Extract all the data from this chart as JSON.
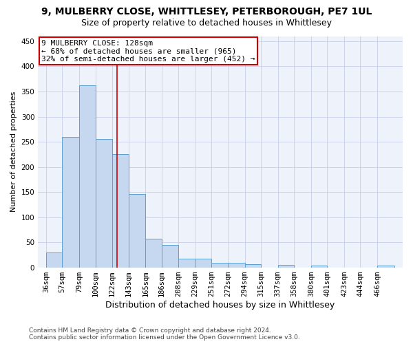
{
  "title": "9, MULBERRY CLOSE, WHITTLESEY, PETERBOROUGH, PE7 1UL",
  "subtitle": "Size of property relative to detached houses in Whittlesey",
  "xlabel": "Distribution of detached houses by size in Whittlesey",
  "ylabel": "Number of detached properties",
  "bar_color": "#c5d8f0",
  "bar_edge_color": "#5a9fd4",
  "categories": [
    "36sqm",
    "57sqm",
    "79sqm",
    "100sqm",
    "122sqm",
    "143sqm",
    "165sqm",
    "186sqm",
    "208sqm",
    "229sqm",
    "251sqm",
    "272sqm",
    "294sqm",
    "315sqm",
    "337sqm",
    "358sqm",
    "380sqm",
    "401sqm",
    "423sqm",
    "444sqm",
    "466sqm"
  ],
  "values": [
    30,
    260,
    362,
    255,
    225,
    147,
    57,
    45,
    18,
    18,
    10,
    10,
    7,
    0,
    6,
    0,
    4,
    0,
    0,
    0,
    4
  ],
  "ylim": [
    0,
    460
  ],
  "yticks": [
    0,
    50,
    100,
    150,
    200,
    250,
    300,
    350,
    400,
    450
  ],
  "bin_width": 21,
  "bin_starts": [
    36,
    57,
    79,
    100,
    122,
    143,
    165,
    186,
    208,
    229,
    251,
    272,
    294,
    315,
    337,
    358,
    380,
    401,
    423,
    444,
    466
  ],
  "property_line_x": 128,
  "annotation_line1": "9 MULBERRY CLOSE: 128sqm",
  "annotation_line2": "← 68% of detached houses are smaller (965)",
  "annotation_line3": "32% of semi-detached houses are larger (452) →",
  "annotation_box_color": "#ffffff",
  "annotation_box_edge_color": "#cc0000",
  "red_line_color": "#cc0000",
  "grid_color": "#c8d0e8",
  "background_color": "#eef2fa",
  "footer_text": "Contains HM Land Registry data © Crown copyright and database right 2024.\nContains public sector information licensed under the Open Government Licence v3.0.",
  "title_fontsize": 10,
  "subtitle_fontsize": 9,
  "xlabel_fontsize": 9,
  "ylabel_fontsize": 8,
  "tick_fontsize": 7.5,
  "annotation_fontsize": 8,
  "footer_fontsize": 6.5
}
